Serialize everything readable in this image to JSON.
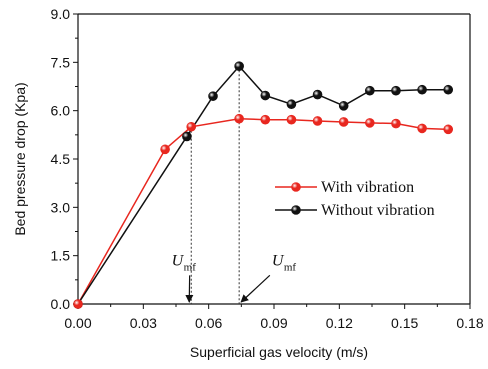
{
  "chart_data": {
    "type": "line",
    "title": "",
    "xlabel": "Superficial gas velocity (m/s)",
    "ylabel": "Bed pressure drop (Kpa)",
    "xlim": [
      0.0,
      0.18
    ],
    "ylim": [
      0.0,
      9.0
    ],
    "x_ticks": [
      "0.00",
      "0.03",
      "0.06",
      "0.09",
      "0.12",
      "0.15",
      "0.18"
    ],
    "y_ticks": [
      "0.0",
      "1.5",
      "3.0",
      "4.5",
      "6.0",
      "7.5",
      "9.0"
    ],
    "grid": false,
    "legend_position": "right-center",
    "series": [
      {
        "name": "With vibration",
        "color": "#e8271f",
        "x": [
          0.0,
          0.04,
          0.052,
          0.074,
          0.086,
          0.098,
          0.11,
          0.122,
          0.134,
          0.146,
          0.158,
          0.17
        ],
        "y": [
          0.0,
          4.8,
          5.5,
          5.75,
          5.72,
          5.72,
          5.68,
          5.65,
          5.62,
          5.6,
          5.45,
          5.42
        ]
      },
      {
        "name": "Without vibration",
        "color": "#111111",
        "x": [
          0.0,
          0.05,
          0.062,
          0.074,
          0.086,
          0.098,
          0.11,
          0.122,
          0.134,
          0.146,
          0.158,
          0.17
        ],
        "y": [
          0.0,
          5.2,
          6.45,
          7.38,
          6.47,
          6.2,
          6.5,
          6.15,
          6.62,
          6.62,
          6.65,
          6.65
        ]
      }
    ],
    "annotations": [
      {
        "symbol": "U",
        "subscript": "mf",
        "x_value": 0.052,
        "label_x": 0.043,
        "label_y": 1.2
      },
      {
        "symbol": "U",
        "subscript": "mf",
        "x_value": 0.074,
        "label_x": 0.089,
        "label_y": 1.2
      }
    ]
  }
}
